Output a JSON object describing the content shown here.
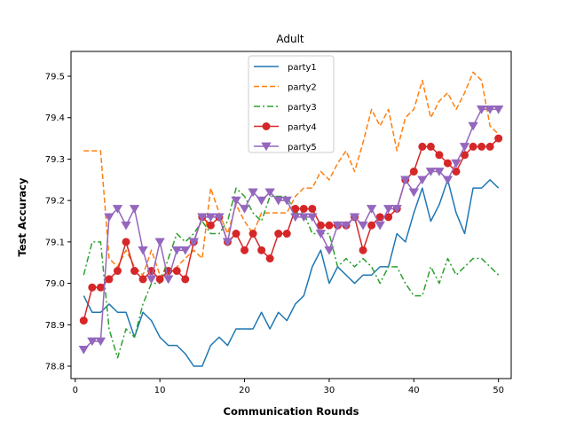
{
  "chart_data": {
    "type": "line",
    "title": "Adult",
    "xlabel": "Communication Rounds",
    "ylabel": "Test Accuracy",
    "xlim": [
      -0.5,
      51.5
    ],
    "ylim": [
      78.77,
      79.56
    ],
    "xticks": [
      0,
      10,
      20,
      30,
      40,
      50
    ],
    "yticks": [
      78.8,
      78.9,
      79.0,
      79.1,
      79.2,
      79.3,
      79.4,
      79.5
    ],
    "ytick_labels": [
      "78.8",
      "78.9",
      "79.0",
      "79.1",
      "79.2",
      "79.3",
      "79.4",
      "79.5"
    ],
    "legend_position": "upper-center",
    "x": [
      1,
      2,
      3,
      4,
      5,
      6,
      7,
      8,
      9,
      10,
      11,
      12,
      13,
      14,
      15,
      16,
      17,
      18,
      19,
      20,
      21,
      22,
      23,
      24,
      25,
      26,
      27,
      28,
      29,
      30,
      31,
      32,
      33,
      34,
      35,
      36,
      37,
      38,
      39,
      40,
      41,
      42,
      43,
      44,
      45,
      46,
      47,
      48,
      49,
      50
    ],
    "series": [
      {
        "name": "party1",
        "color": "#1f77b4",
        "dash": "solid",
        "marker": "none",
        "values": [
          78.97,
          78.93,
          78.93,
          78.95,
          78.93,
          78.93,
          78.87,
          78.93,
          78.91,
          78.87,
          78.85,
          78.85,
          78.83,
          78.8,
          78.8,
          78.85,
          78.87,
          78.85,
          78.89,
          78.89,
          78.89,
          78.93,
          78.89,
          78.93,
          78.91,
          78.95,
          78.97,
          79.04,
          79.08,
          79.0,
          79.04,
          79.02,
          79.0,
          79.02,
          79.02,
          79.04,
          79.04,
          79.12,
          79.1,
          79.17,
          79.23,
          79.15,
          79.19,
          79.25,
          79.17,
          79.12,
          79.23,
          79.23,
          79.25,
          79.23
        ]
      },
      {
        "name": "party2",
        "color": "#ff7f0e",
        "dash": "dashed",
        "marker": "none",
        "values": [
          79.32,
          79.32,
          79.32,
          79.06,
          79.04,
          79.08,
          79.04,
          79.02,
          79.08,
          79.02,
          79.02,
          79.04,
          79.06,
          79.08,
          79.06,
          79.23,
          79.17,
          79.12,
          79.19,
          79.15,
          79.12,
          79.17,
          79.17,
          79.17,
          79.17,
          79.21,
          79.23,
          79.23,
          79.27,
          79.25,
          79.29,
          79.32,
          79.27,
          79.34,
          79.42,
          79.38,
          79.42,
          79.32,
          79.4,
          79.42,
          79.49,
          79.4,
          79.44,
          79.46,
          79.42,
          79.46,
          79.51,
          79.49,
          79.38,
          79.36
        ]
      },
      {
        "name": "party3",
        "color": "#2ca02c",
        "dash": "dashdot",
        "marker": "none",
        "values": [
          79.02,
          79.1,
          79.1,
          78.89,
          78.82,
          78.89,
          78.87,
          78.95,
          79.0,
          79.0,
          79.06,
          79.12,
          79.1,
          79.12,
          79.15,
          79.12,
          79.12,
          79.15,
          79.23,
          79.21,
          79.17,
          79.15,
          79.21,
          79.21,
          79.21,
          79.17,
          79.17,
          79.12,
          79.12,
          79.12,
          79.04,
          79.06,
          79.04,
          79.06,
          79.04,
          79.0,
          79.04,
          79.04,
          79.0,
          78.97,
          78.97,
          79.04,
          79.0,
          79.06,
          79.02,
          79.04,
          79.06,
          79.06,
          79.04,
          79.02
        ]
      },
      {
        "name": "party4",
        "color": "#d62728",
        "dash": "solid",
        "marker": "circle",
        "values": [
          78.91,
          78.99,
          78.99,
          79.01,
          79.03,
          79.1,
          79.03,
          79.01,
          79.03,
          79.01,
          79.03,
          79.03,
          79.01,
          79.1,
          79.16,
          79.14,
          79.16,
          79.1,
          79.12,
          79.08,
          79.12,
          79.08,
          79.06,
          79.12,
          79.12,
          79.18,
          79.18,
          79.18,
          79.14,
          79.14,
          79.14,
          79.14,
          79.16,
          79.08,
          79.14,
          79.16,
          79.16,
          79.18,
          79.25,
          79.27,
          79.33,
          79.33,
          79.31,
          79.29,
          79.27,
          79.31,
          79.33,
          79.33,
          79.33,
          79.35
        ]
      },
      {
        "name": "party5",
        "color": "#9467bd",
        "dash": "solid",
        "marker": "triangle-down",
        "values": [
          78.84,
          78.86,
          78.86,
          79.16,
          79.18,
          79.14,
          79.18,
          79.08,
          79.01,
          79.1,
          79.01,
          79.08,
          79.08,
          79.1,
          79.16,
          79.16,
          79.16,
          79.1,
          79.2,
          79.18,
          79.22,
          79.2,
          79.22,
          79.2,
          79.2,
          79.16,
          79.16,
          79.16,
          79.12,
          79.08,
          79.14,
          79.14,
          79.16,
          79.14,
          79.18,
          79.14,
          79.18,
          79.18,
          79.25,
          79.22,
          79.25,
          79.27,
          79.27,
          79.25,
          79.29,
          79.33,
          79.38,
          79.42,
          79.42,
          79.42
        ]
      }
    ]
  }
}
